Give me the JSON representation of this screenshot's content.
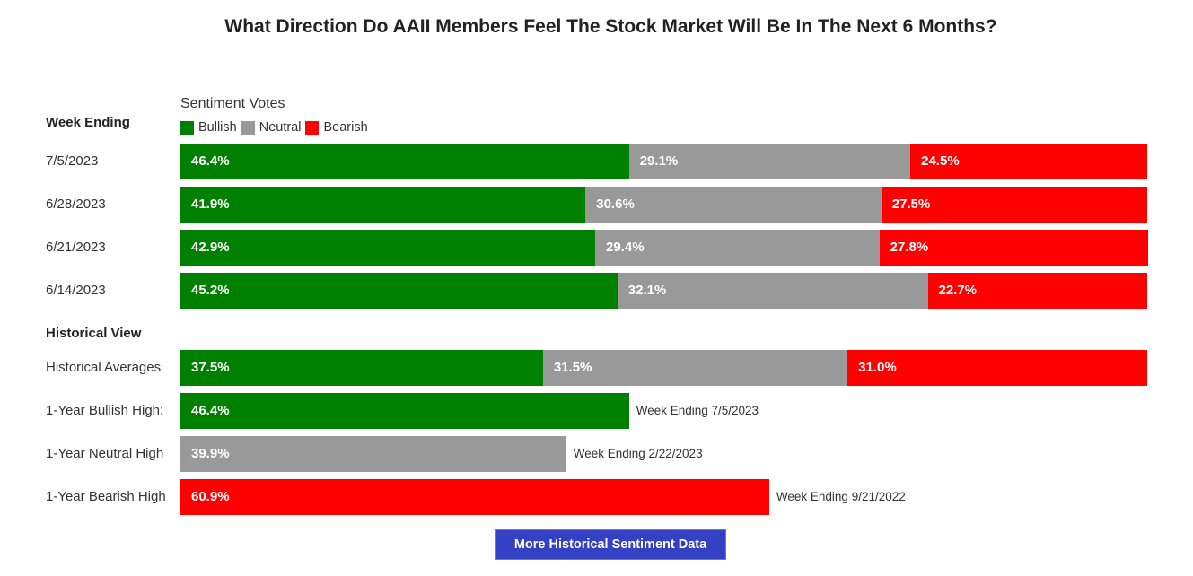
{
  "title": "What Direction Do AAII Members Feel The Stock Market Will Be In The Next 6 Months?",
  "button_label": "More Historical Sentiment Data",
  "chart_data": {
    "type": "bar",
    "orientation": "horizontal",
    "stacked": true,
    "xlim": [
      0,
      100
    ],
    "legend_title": "Sentiment Votes",
    "legend_position": "top",
    "series_names": [
      "Bullish",
      "Neutral",
      "Bearish"
    ],
    "colors": {
      "Bullish": "#008000",
      "Neutral": "#999999",
      "Bearish": "#ff0000"
    },
    "weekly_header": "Week Ending",
    "weekly": [
      {
        "label": "7/5/2023",
        "values": [
          46.4,
          29.1,
          24.5
        ],
        "texts": [
          "46.4%",
          "29.1%",
          "24.5%"
        ]
      },
      {
        "label": "6/28/2023",
        "values": [
          41.9,
          30.6,
          27.5
        ],
        "texts": [
          "41.9%",
          "30.6%",
          "27.5%"
        ]
      },
      {
        "label": "6/21/2023",
        "values": [
          42.9,
          29.4,
          27.8
        ],
        "texts": [
          "42.9%",
          "29.4%",
          "27.8%"
        ]
      },
      {
        "label": "6/14/2023",
        "values": [
          45.2,
          32.1,
          22.7
        ],
        "texts": [
          "45.2%",
          "32.1%",
          "22.7%"
        ]
      }
    ],
    "historical_header": "Historical View",
    "historical": [
      {
        "label": "Historical Averages",
        "values": [
          37.5,
          31.5,
          31.0
        ],
        "texts": [
          "37.5%",
          "31.5%",
          "31.0%"
        ]
      },
      {
        "label": "1-Year Bullish High:",
        "values": [
          46.4,
          null,
          null
        ],
        "texts": [
          "46.4%"
        ],
        "note": "Week Ending 7/5/2023"
      },
      {
        "label": "1-Year Neutral High",
        "values": [
          null,
          39.9,
          null
        ],
        "texts": [
          "39.9%"
        ],
        "note": "Week Ending 2/22/2023"
      },
      {
        "label": "1-Year Bearish High",
        "values": [
          null,
          null,
          60.9
        ],
        "texts": [
          "60.9%"
        ],
        "note": "Week Ending 9/21/2022"
      }
    ]
  }
}
